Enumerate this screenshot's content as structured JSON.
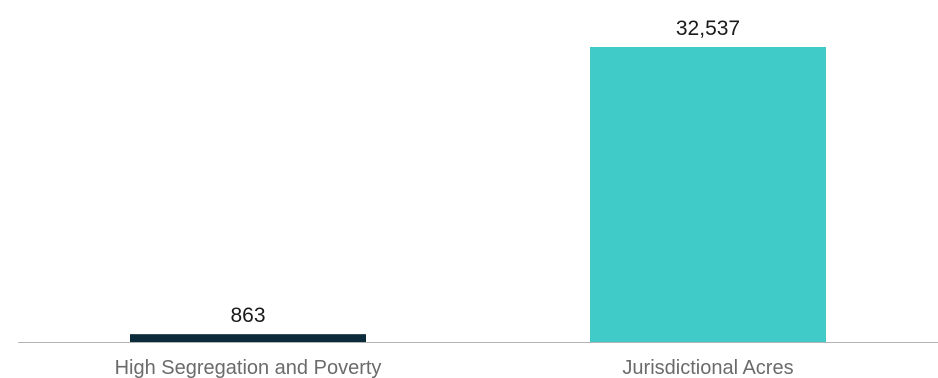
{
  "chart_data": {
    "type": "bar",
    "categories": [
      "High Segregation and Poverty",
      "Jurisdictional Acres"
    ],
    "values": [
      863,
      32537
    ],
    "value_labels": [
      "863",
      "32,537"
    ],
    "colors": [
      "#0c2b3a",
      "#40cbc8"
    ],
    "axis_color": "#b3b3b3",
    "title": "",
    "xlabel": "",
    "ylabel": "",
    "ylim": [
      0,
      32537
    ],
    "grid": false,
    "legend": "none"
  }
}
